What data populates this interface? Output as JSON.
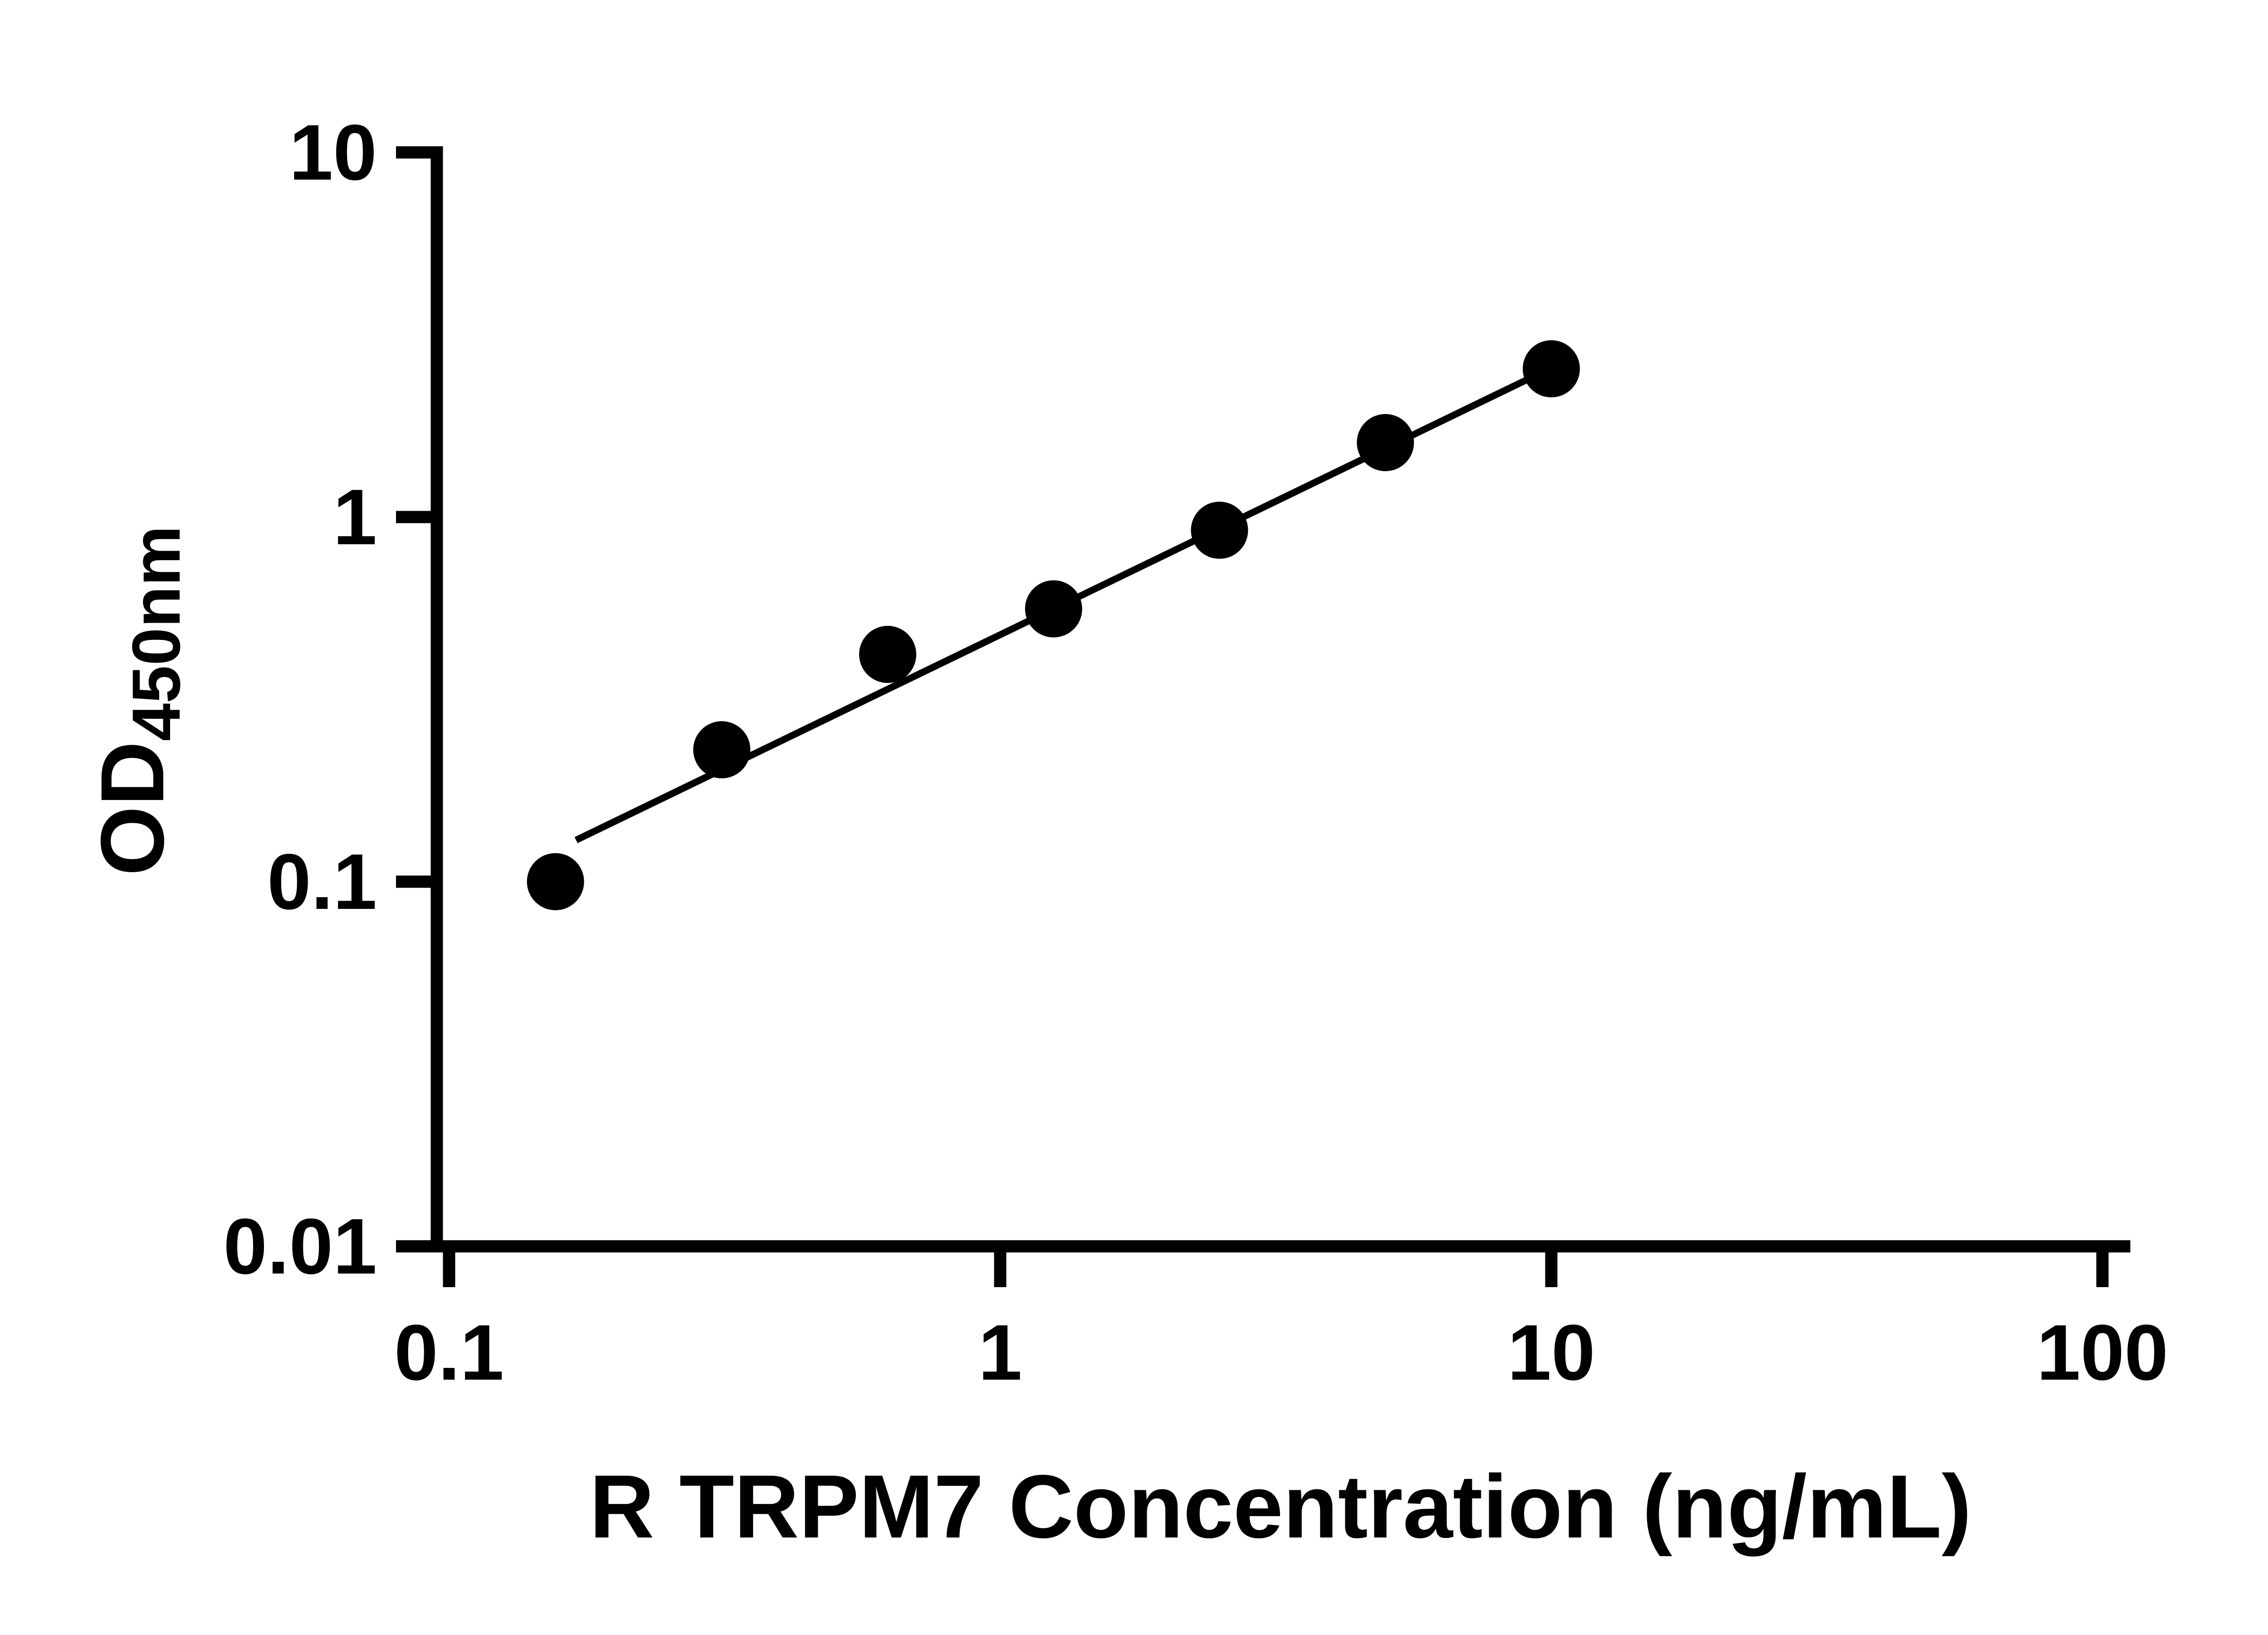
{
  "chart_data": {
    "type": "scatter",
    "title": "",
    "xlabel": "R TRPM7 Concentration (ng/mL)",
    "ylabel_main": "OD",
    "ylabel_sub": "450nm",
    "x_scale": "log",
    "y_scale": "log",
    "xlim": [
      0.1,
      100
    ],
    "ylim": [
      0.01,
      10
    ],
    "x_ticks": [
      0.1,
      1,
      10,
      100
    ],
    "x_tick_labels": [
      "0.1",
      "1",
      "10",
      "100"
    ],
    "y_ticks": [
      0.01,
      0.1,
      1,
      10
    ],
    "y_tick_labels": [
      "0.01",
      "0.1",
      "1",
      "10"
    ],
    "points": [
      {
        "x": 0.156,
        "y": 0.1
      },
      {
        "x": 0.3125,
        "y": 0.23
      },
      {
        "x": 0.625,
        "y": 0.42
      },
      {
        "x": 1.25,
        "y": 0.56
      },
      {
        "x": 2.5,
        "y": 0.92
      },
      {
        "x": 5,
        "y": 1.6
      },
      {
        "x": 10,
        "y": 2.55
      }
    ],
    "trendline": {
      "x_start": 0.17,
      "y_start": 0.13,
      "x_end": 11,
      "y_end": 2.75
    },
    "marker_color": "#000000",
    "line_color": "#000000",
    "axis_color": "#000000",
    "grid": false,
    "legend": "none"
  }
}
